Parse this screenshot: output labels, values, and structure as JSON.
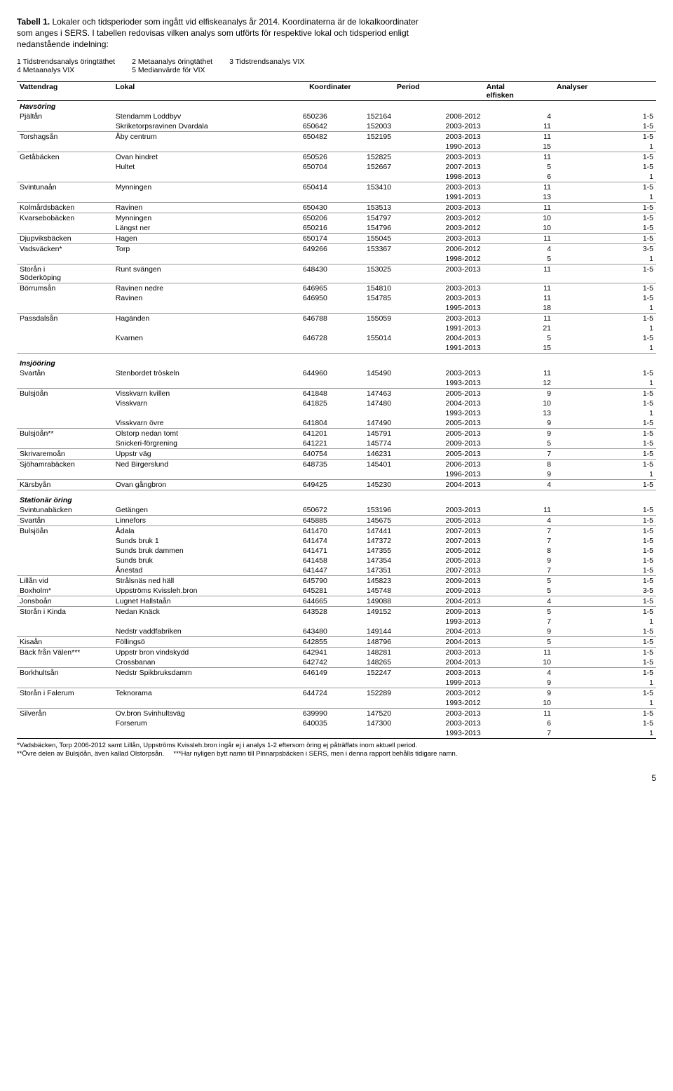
{
  "title": {
    "bold": "Tabell 1.",
    "rest1": "Lokaler och tidsperioder som ingått vid elfiskeanalys år 2014. Koordinaterna är de lokalkoordinater",
    "rest2": "som anges i SERS.",
    "rest3": "I tabellen redovisas vilken analys som utförts för respektive lokal och tidsperiod enligt",
    "rest4": "nedanstående indelning:"
  },
  "legend": {
    "c1": "1 Tidstrendsanalys öringtäthet",
    "c2": "2 Metaanalys öringtäthet",
    "c3": "3 Tidstrendsanalys VIX",
    "c4": "4 Metaanalys VIX",
    "c5": "5 Medianvärde för VIX"
  },
  "headers": {
    "vattendrag": "Vattendrag",
    "lokal": "Lokal",
    "koordinater": "Koordinater",
    "period": "Period",
    "antal_top": "Antal",
    "antal_bot": "elfisken",
    "analyser": "Analyser"
  },
  "sections": [
    {
      "name": "Havsöring",
      "groups": [
        {
          "rows": [
            {
              "vd": "Pjältån",
              "lk": "Stendamm Loddbyv",
              "k1": "650236",
              "k2": "152164",
              "p": "2008-2012",
              "a": "4",
              "an": "1-5"
            },
            {
              "vd": "",
              "lk": "Skriketorpsravinen Dvardala",
              "k1": "650642",
              "k2": "152003",
              "p": "2003-2013",
              "a": "11",
              "an": "1-5"
            }
          ]
        },
        {
          "rows": [
            {
              "vd": "Torshagsån",
              "lk": "Åby centrum",
              "k1": "650482",
              "k2": "152195",
              "p": "2003-2013",
              "a": "11",
              "an": "1-5"
            },
            {
              "vd": "",
              "lk": "",
              "k1": "",
              "k2": "",
              "p": "1990-2013",
              "a": "15",
              "an": "1"
            }
          ]
        },
        {
          "rows": [
            {
              "vd": "Getåbäcken",
              "lk": "Ovan hindret",
              "k1": "650526",
              "k2": "152825",
              "p": "2003-2013",
              "a": "11",
              "an": "1-5"
            },
            {
              "vd": "",
              "lk": "Hultet",
              "k1": "650704",
              "k2": "152667",
              "p": "2007-2013",
              "a": "5",
              "an": "1-5"
            },
            {
              "vd": "",
              "lk": "",
              "k1": "",
              "k2": "",
              "p": "1998-2013",
              "a": "6",
              "an": "1"
            }
          ]
        },
        {
          "rows": [
            {
              "vd": "Svintunaån",
              "lk": "Mynningen",
              "k1": "650414",
              "k2": "153410",
              "p": "2003-2013",
              "a": "11",
              "an": "1-5"
            },
            {
              "vd": "",
              "lk": "",
              "k1": "",
              "k2": "",
              "p": "1991-2013",
              "a": "13",
              "an": "1"
            }
          ]
        },
        {
          "rows": [
            {
              "vd": "Kolmårdsbäcken",
              "lk": "Ravinen",
              "k1": "650430",
              "k2": "153513",
              "p": "2003-2013",
              "a": "11",
              "an": "1-5"
            }
          ]
        },
        {
          "rows": [
            {
              "vd": "Kvarsebobäcken",
              "lk": "Mynningen",
              "k1": "650206",
              "k2": "154797",
              "p": "2003-2012",
              "a": "10",
              "an": "1-5"
            },
            {
              "vd": "",
              "lk": "Längst ner",
              "k1": "650216",
              "k2": "154796",
              "p": "2003-2012",
              "a": "10",
              "an": "1-5"
            }
          ]
        },
        {
          "rows": [
            {
              "vd": "Djupviksbäcken",
              "lk": "Hagen",
              "k1": "650174",
              "k2": "155045",
              "p": "2003-2013",
              "a": "11",
              "an": "1-5"
            }
          ]
        },
        {
          "rows": [
            {
              "vd": "Vadsväcken*",
              "lk": "Torp",
              "k1": "649266",
              "k2": "153367",
              "p": "2006-2012",
              "a": "4",
              "an": "3-5"
            },
            {
              "vd": "",
              "lk": "",
              "k1": "",
              "k2": "",
              "p": "1998-2012",
              "a": "5",
              "an": "1"
            }
          ]
        },
        {
          "rows": [
            {
              "vd": "Storån i\nSöderköping",
              "lk": "Runt svängen",
              "k1": "648430",
              "k2": "153025",
              "p": "2003-2013",
              "a": "11",
              "an": "1-5"
            }
          ]
        },
        {
          "rows": [
            {
              "vd": "Börrumsån",
              "lk": "Ravinen nedre",
              "k1": "646965",
              "k2": "154810",
              "p": "2003-2013",
              "a": "11",
              "an": "1-5"
            },
            {
              "vd": "",
              "lk": "Ravinen",
              "k1": "646950",
              "k2": "154785",
              "p": "2003-2013",
              "a": "11",
              "an": "1-5"
            },
            {
              "vd": "",
              "lk": "",
              "k1": "",
              "k2": "",
              "p": "1995-2013",
              "a": "18",
              "an": "1"
            }
          ]
        },
        {
          "rows": [
            {
              "vd": "Passdalsån",
              "lk": "Hagänden",
              "k1": "646788",
              "k2": "155059",
              "p": "2003-2013",
              "a": "11",
              "an": "1-5"
            },
            {
              "vd": "",
              "lk": "",
              "k1": "",
              "k2": "",
              "p": "1991-2013",
              "a": "21",
              "an": "1"
            },
            {
              "vd": "",
              "lk": "Kvarnen",
              "k1": "646728",
              "k2": "155014",
              "p": "2004-2013",
              "a": "5",
              "an": "1-5"
            },
            {
              "vd": "",
              "lk": "",
              "k1": "",
              "k2": "",
              "p": "1991-2013",
              "a": "15",
              "an": "1"
            }
          ]
        }
      ]
    },
    {
      "name": "Insjööring",
      "groups": [
        {
          "rows": [
            {
              "vd": "Svartån",
              "lk": "Stenbordet tröskeln",
              "k1": "644960",
              "k2": "145490",
              "p": "2003-2013",
              "a": "11",
              "an": "1-5"
            },
            {
              "vd": "",
              "lk": "",
              "k1": "",
              "k2": "",
              "p": "1993-2013",
              "a": "12",
              "an": "1"
            }
          ]
        },
        {
          "rows": [
            {
              "vd": "Bulsjöån",
              "lk": "Visskvarn kvillen",
              "k1": "641848",
              "k2": "147463",
              "p": "2005-2013",
              "a": "9",
              "an": "1-5"
            },
            {
              "vd": "",
              "lk": "Visskvarn",
              "k1": "641825",
              "k2": "147480",
              "p": "2004-2013",
              "a": "10",
              "an": "1-5"
            },
            {
              "vd": "",
              "lk": "",
              "k1": "",
              "k2": "",
              "p": "1993-2013",
              "a": "13",
              "an": "1"
            },
            {
              "vd": "",
              "lk": "Visskvarn övre",
              "k1": "641804",
              "k2": "147490",
              "p": "2005-2013",
              "a": "9",
              "an": "1-5"
            }
          ]
        },
        {
          "rows": [
            {
              "vd": "Bulsjöån**",
              "lk": "Olstorp nedan tomt",
              "k1": "641201",
              "k2": "145791",
              "p": "2005-2013",
              "a": "9",
              "an": "1-5"
            },
            {
              "vd": "",
              "lk": "Snickeri-förgrening",
              "k1": "641221",
              "k2": "145774",
              "p": "2009-2013",
              "a": "5",
              "an": "1-5"
            }
          ]
        },
        {
          "rows": [
            {
              "vd": "Skrivaremoån",
              "lk": "Uppstr väg",
              "k1": "640754",
              "k2": "146231",
              "p": "2005-2013",
              "a": "7",
              "an": "1-5"
            }
          ]
        },
        {
          "rows": [
            {
              "vd": "Sjöhamrabäcken",
              "lk": "Ned Birgerslund",
              "k1": "648735",
              "k2": "145401",
              "p": "2006-2013",
              "a": "8",
              "an": "1-5"
            },
            {
              "vd": "",
              "lk": "",
              "k1": "",
              "k2": "",
              "p": "1996-2013",
              "a": "9",
              "an": "1"
            }
          ]
        },
        {
          "rows": [
            {
              "vd": "Kärsbyån",
              "lk": "Ovan gångbron",
              "k1": "649425",
              "k2": "145230",
              "p": "2004-2013",
              "a": "4",
              "an": "1-5"
            }
          ]
        }
      ]
    },
    {
      "name": "Stationär öring",
      "groups": [
        {
          "rows": [
            {
              "vd": "Svintunabäcken",
              "lk": "Getängen",
              "k1": "650672",
              "k2": "153196",
              "p": "2003-2013",
              "a": "11",
              "an": "1-5"
            }
          ]
        },
        {
          "rows": [
            {
              "vd": "Svartån",
              "lk": "Linnefors",
              "k1": "645885",
              "k2": "145675",
              "p": "2005-2013",
              "a": "4",
              "an": "1-5"
            }
          ]
        },
        {
          "rows": [
            {
              "vd": "Bulsjöån",
              "lk": "Ådala",
              "k1": "641470",
              "k2": "147441",
              "p": "2007-2013",
              "a": "7",
              "an": "1-5"
            },
            {
              "vd": "",
              "lk": "Sunds bruk 1",
              "k1": "641474",
              "k2": "147372",
              "p": "2007-2013",
              "a": "7",
              "an": "1-5"
            },
            {
              "vd": "",
              "lk": "Sunds bruk dammen",
              "k1": "641471",
              "k2": "147355",
              "p": "2005-2012",
              "a": "8",
              "an": "1-5"
            },
            {
              "vd": "",
              "lk": "Sunds bruk",
              "k1": "641458",
              "k2": "147354",
              "p": "2005-2013",
              "a": "9",
              "an": "1-5"
            },
            {
              "vd": "",
              "lk": "Ånestad",
              "k1": "641447",
              "k2": "147351",
              "p": "2007-2013",
              "a": "7",
              "an": "1-5"
            }
          ]
        },
        {
          "rows": [
            {
              "vd": "Lillån vid",
              "lk": "Strålsnäs ned häll",
              "k1": "645790",
              "k2": "145823",
              "p": "2009-2013",
              "a": "5",
              "an": "1-5"
            },
            {
              "vd": "Boxholm*",
              "lk": "Uppströms Kvissleh.bron",
              "k1": "645281",
              "k2": "145748",
              "p": "2009-2013",
              "a": "5",
              "an": "3-5"
            }
          ]
        },
        {
          "rows": [
            {
              "vd": "Jonsboån",
              "lk": "Lugnet Hallstaån",
              "k1": "644665",
              "k2": "149088",
              "p": "2004-2013",
              "a": "4",
              "an": "1-5"
            }
          ]
        },
        {
          "rows": [
            {
              "vd": "Storån i Kinda",
              "lk": "Nedan Knäck",
              "k1": "643528",
              "k2": "149152",
              "p": "2009-2013",
              "a": "5",
              "an": "1-5"
            },
            {
              "vd": "",
              "lk": "",
              "k1": "",
              "k2": "",
              "p": "1993-2013",
              "a": "7",
              "an": "1"
            },
            {
              "vd": "",
              "lk": "Nedstr vaddfabriken",
              "k1": "643480",
              "k2": "149144",
              "p": "2004-2013",
              "a": "9",
              "an": "1-5"
            }
          ]
        },
        {
          "rows": [
            {
              "vd": "Kisaån",
              "lk": "Föllingsö",
              "k1": "642855",
              "k2": "148796",
              "p": "2004-2013",
              "a": "5",
              "an": "1-5"
            }
          ]
        },
        {
          "rows": [
            {
              "vd": "Bäck från Välen***",
              "lk": "Uppstr bron vindskydd",
              "k1": "642941",
              "k2": "148281",
              "p": "2003-2013",
              "a": "11",
              "an": "1-5"
            },
            {
              "vd": "",
              "lk": "Crossbanan",
              "k1": "642742",
              "k2": "148265",
              "p": "2004-2013",
              "a": "10",
              "an": "1-5"
            }
          ]
        },
        {
          "rows": [
            {
              "vd": "Borkhultsån",
              "lk": "Nedstr Spikbruksdamm",
              "k1": "646149",
              "k2": "152247",
              "p": "2003-2013",
              "a": "4",
              "an": "1-5"
            },
            {
              "vd": "",
              "lk": "",
              "k1": "",
              "k2": "",
              "p": "1999-2013",
              "a": "9",
              "an": "1"
            }
          ]
        },
        {
          "rows": [
            {
              "vd": "Storån i Falerum",
              "lk": "Teknorama",
              "k1": "644724",
              "k2": "152289",
              "p": "2003-2012",
              "a": "9",
              "an": "1-5"
            },
            {
              "vd": "",
              "lk": "",
              "k1": "",
              "k2": "",
              "p": "1993-2012",
              "a": "10",
              "an": "1"
            }
          ]
        },
        {
          "rows": [
            {
              "vd": "Silverån",
              "lk": "Ov.bron Svinhultsväg",
              "k1": "639990",
              "k2": "147520",
              "p": "2003-2013",
              "a": "11",
              "an": "1-5"
            },
            {
              "vd": "",
              "lk": "Forserum",
              "k1": "640035",
              "k2": "147300",
              "p": "2003-2013",
              "a": "6",
              "an": "1-5"
            },
            {
              "vd": "",
              "lk": "",
              "k1": "",
              "k2": "",
              "p": "1993-2013",
              "a": "7",
              "an": "1"
            }
          ],
          "last": true
        }
      ]
    }
  ],
  "footnotes": {
    "l1": "*Vadsbäcken, Torp 2006-2012 samt Lillån, Uppströms Kvissleh.bron ingår ej i analys 1-2 eftersom öring ej påträffats inom aktuell period.",
    "l2a": "**Övre delen av Bulsjöån, även kallad Olstorpsån.",
    "l2b": "***Har nyligen bytt namn till Pinnarpsbäcken i SERS, men i denna rapport behålls tidigare namn."
  },
  "pageNumber": "5"
}
